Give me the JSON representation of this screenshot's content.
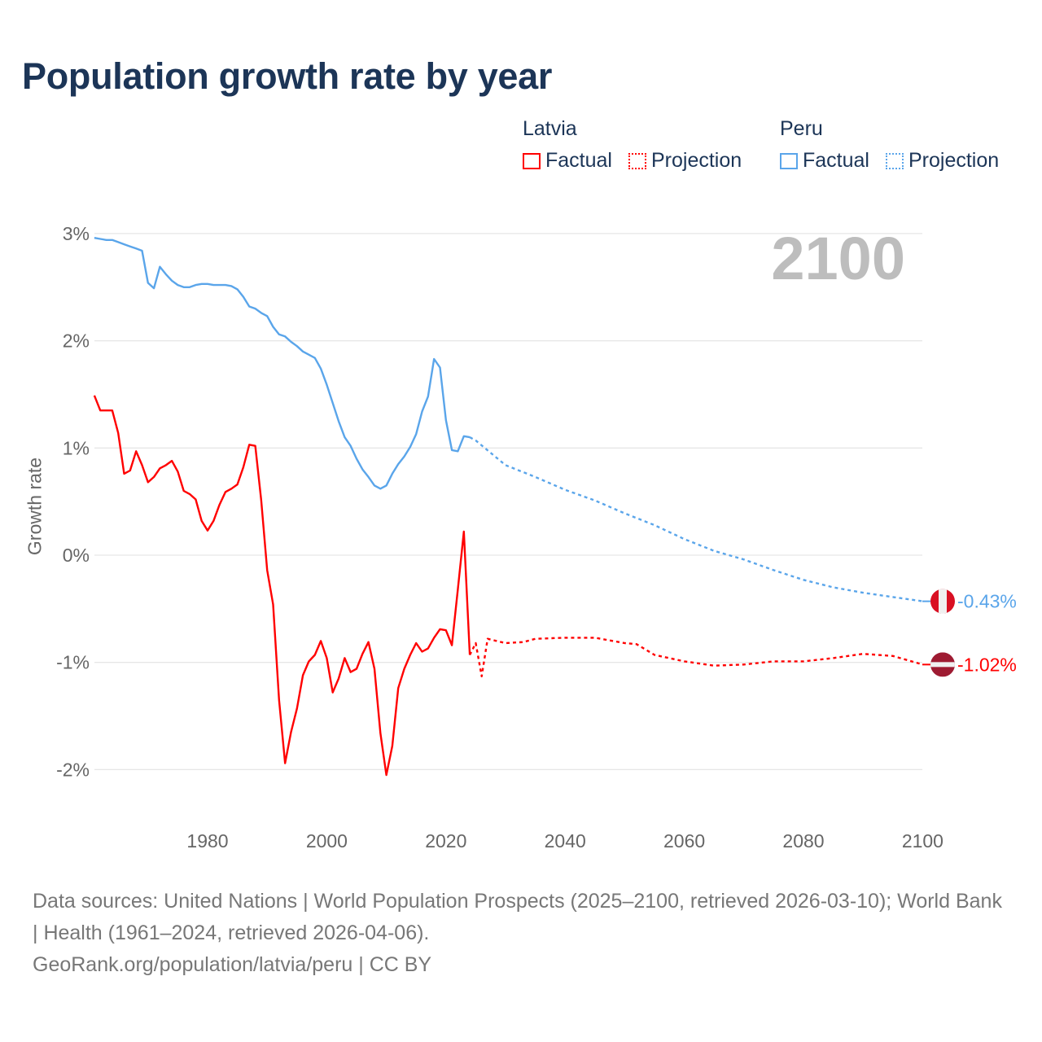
{
  "title": "Population growth rate by year",
  "legend": {
    "groups": [
      {
        "name": "Latvia",
        "factual": "Factual",
        "projection": "Projection",
        "color": "#ff0000"
      },
      {
        "name": "Peru",
        "factual": "Factual",
        "projection": "Projection",
        "color": "#5aa5ea"
      }
    ]
  },
  "current_year": "2100",
  "end_labels": {
    "peru": "-0.43%",
    "latvia": "-1.02%"
  },
  "footer": {
    "sources": "Data sources: United Nations | World Population Prospects (2025–2100, retrieved 2026-03-10); World Bank | Health (1961–2024, retrieved 2026-04-06).",
    "credit": "GeoRank.org/population/latvia/peru | CC BY"
  },
  "chart_data": {
    "type": "line",
    "title": "Population growth rate by year",
    "xlabel": "",
    "ylabel": "Growth rate",
    "xlim": [
      1961,
      2100
    ],
    "ylim": [
      -2.5,
      3.1
    ],
    "x_ticks": [
      1980,
      2000,
      2020,
      2040,
      2060,
      2080,
      2100
    ],
    "x_tick_labels": [
      "1980",
      "2000",
      "2020",
      "2040",
      "2060",
      "2080",
      "2100"
    ],
    "y_ticks": [
      3,
      2,
      1,
      0,
      -1,
      -2
    ],
    "y_tick_labels": [
      "3%",
      "2%",
      "1%",
      "0%",
      "-1%",
      "-2%"
    ],
    "grid": true,
    "legend_position": "top-right",
    "series": [
      {
        "name": "Peru Factual",
        "color": "#5aa5ea",
        "style": "solid",
        "x": [
          1961,
          1962,
          1963,
          1964,
          1965,
          1966,
          1967,
          1968,
          1969,
          1970,
          1971,
          1972,
          1973,
          1974,
          1975,
          1976,
          1977,
          1978,
          1979,
          1980,
          1981,
          1982,
          1983,
          1984,
          1985,
          1986,
          1987,
          1988,
          1989,
          1990,
          1991,
          1992,
          1993,
          1994,
          1995,
          1996,
          1997,
          1998,
          1999,
          2000,
          2001,
          2002,
          2003,
          2004,
          2005,
          2006,
          2007,
          2008,
          2009,
          2010,
          2011,
          2012,
          2013,
          2014,
          2015,
          2016,
          2017,
          2018,
          2019,
          2020,
          2021,
          2022,
          2023,
          2024
        ],
        "y": [
          2.96,
          2.95,
          2.94,
          2.94,
          2.92,
          2.9,
          2.88,
          2.86,
          2.84,
          2.54,
          2.49,
          2.69,
          2.62,
          2.56,
          2.52,
          2.5,
          2.5,
          2.52,
          2.53,
          2.53,
          2.52,
          2.52,
          2.52,
          2.51,
          2.48,
          2.41,
          2.32,
          2.3,
          2.26,
          2.23,
          2.13,
          2.06,
          2.04,
          1.99,
          1.95,
          1.9,
          1.87,
          1.84,
          1.74,
          1.59,
          1.42,
          1.25,
          1.1,
          1.02,
          0.9,
          0.8,
          0.73,
          0.65,
          0.62,
          0.65,
          0.76,
          0.85,
          0.92,
          1.01,
          1.13,
          1.34,
          1.48,
          1.83,
          1.75,
          1.26,
          0.98,
          0.97,
          1.11,
          1.1
        ]
      },
      {
        "name": "Peru Projection",
        "color": "#5aa5ea",
        "style": "dotted",
        "x": [
          2024,
          2025,
          2030,
          2035,
          2040,
          2045,
          2050,
          2055,
          2060,
          2065,
          2070,
          2075,
          2080,
          2085,
          2090,
          2095,
          2100
        ],
        "y": [
          1.1,
          1.07,
          0.84,
          0.73,
          0.61,
          0.51,
          0.39,
          0.28,
          0.15,
          0.04,
          -0.04,
          -0.14,
          -0.23,
          -0.3,
          -0.35,
          -0.39,
          -0.43
        ]
      },
      {
        "name": "Latvia Factual",
        "color": "#ff0000",
        "style": "solid",
        "x": [
          1961,
          1962,
          1963,
          1964,
          1965,
          1966,
          1967,
          1968,
          1969,
          1970,
          1971,
          1972,
          1973,
          1974,
          1975,
          1976,
          1977,
          1978,
          1979,
          1980,
          1981,
          1982,
          1983,
          1984,
          1985,
          1986,
          1987,
          1988,
          1989,
          1990,
          1991,
          1992,
          1993,
          1994,
          1995,
          1996,
          1997,
          1998,
          1999,
          2000,
          2001,
          2002,
          2003,
          2004,
          2005,
          2006,
          2007,
          2008,
          2009,
          2010,
          2011,
          2012,
          2013,
          2014,
          2015,
          2016,
          2017,
          2018,
          2019,
          2020,
          2021,
          2022,
          2023,
          2024
        ],
        "y": [
          1.49,
          1.35,
          1.35,
          1.35,
          1.14,
          0.76,
          0.79,
          0.97,
          0.84,
          0.68,
          0.73,
          0.81,
          0.84,
          0.88,
          0.78,
          0.6,
          0.57,
          0.52,
          0.32,
          0.23,
          0.32,
          0.47,
          0.59,
          0.62,
          0.66,
          0.82,
          1.03,
          1.02,
          0.51,
          -0.14,
          -0.46,
          -1.35,
          -1.94,
          -1.65,
          -1.43,
          -1.12,
          -0.99,
          -0.93,
          -0.8,
          -0.96,
          -1.28,
          -1.15,
          -0.96,
          -1.09,
          -1.06,
          -0.92,
          -0.81,
          -1.06,
          -1.66,
          -2.05,
          -1.78,
          -1.24,
          -1.06,
          -0.93,
          -0.82,
          -0.9,
          -0.87,
          -0.77,
          -0.69,
          -0.7,
          -0.84,
          -0.32,
          0.22,
          -0.93
        ]
      },
      {
        "name": "Latvia Projection",
        "color": "#ff0000",
        "style": "dotted",
        "x": [
          2024,
          2025,
          2026,
          2027,
          2030,
          2033,
          2035,
          2040,
          2045,
          2050,
          2052,
          2055,
          2060,
          2065,
          2070,
          2075,
          2080,
          2085,
          2090,
          2095,
          2100
        ],
        "y": [
          -0.93,
          -0.82,
          -1.13,
          -0.78,
          -0.82,
          -0.81,
          -0.78,
          -0.77,
          -0.77,
          -0.82,
          -0.83,
          -0.93,
          -0.99,
          -1.03,
          -1.02,
          -0.99,
          -0.99,
          -0.96,
          -0.92,
          -0.94,
          -1.02
        ]
      }
    ]
  }
}
